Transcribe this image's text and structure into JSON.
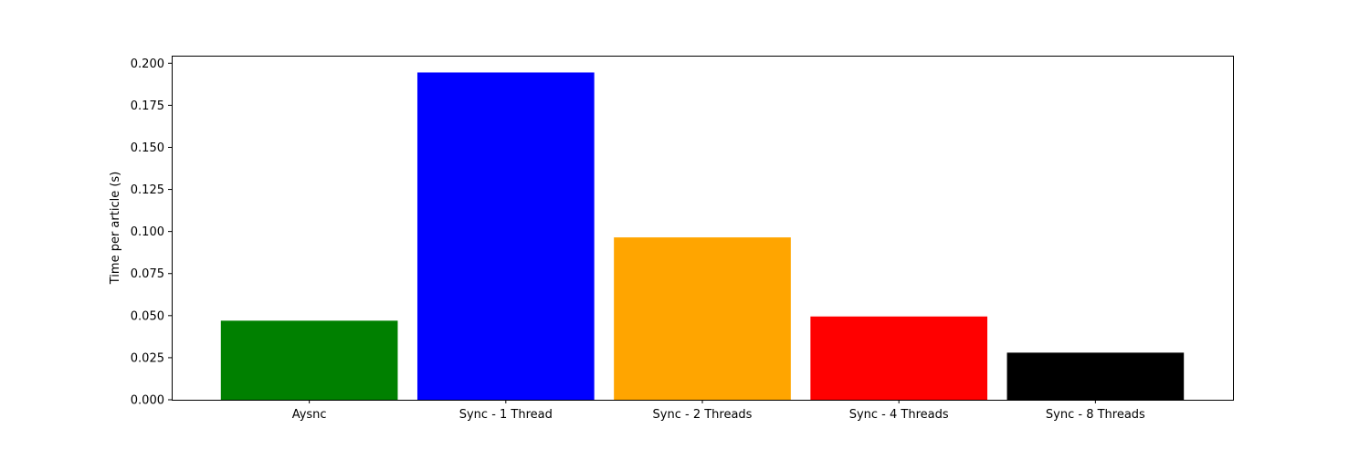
{
  "chart_data": {
    "type": "bar",
    "title": "",
    "xlabel": "",
    "ylabel": "Time per article (s)",
    "categories": [
      "Aysnc",
      "Sync - 1 Thread",
      "Sync - 2 Threads",
      "Sync - 4 Threads",
      "Sync - 8 Threads"
    ],
    "values": [
      0.047,
      0.1945,
      0.0965,
      0.0495,
      0.028
    ],
    "colors": [
      "#008000",
      "#0000ff",
      "#ffa500",
      "#ff0000",
      "#000000"
    ],
    "ylim": [
      0,
      0.2045
    ],
    "yticks": [
      "0.000",
      "0.025",
      "0.050",
      "0.075",
      "0.100",
      "0.125",
      "0.150",
      "0.175",
      "0.200"
    ],
    "grid": false,
    "legend": false
  }
}
